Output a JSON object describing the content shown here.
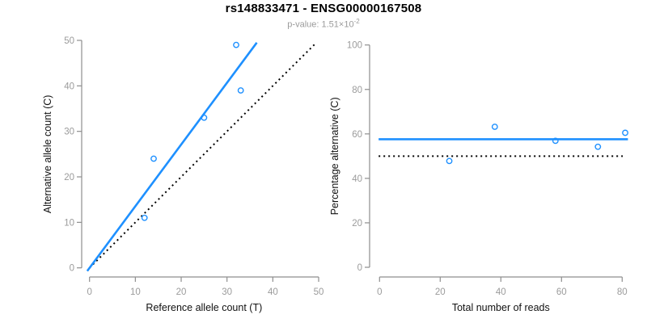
{
  "header": {
    "title": "rs148833471 - ENSG00000167508",
    "subtitle_prefix": "p-value: 1.51×10",
    "subtitle_exponent": "-2"
  },
  "colors": {
    "accent_blue": "#1E90FF",
    "reference_black": "#000000",
    "axis_gray": "#8E8E8E",
    "tick_label_gray": "#9B9B9B",
    "axis_title_black": "#111111",
    "subtitle_gray": "#9B9B9B"
  },
  "chart_data": [
    {
      "type": "scatter",
      "xlabel": "Reference allele count (T)",
      "ylabel": "Alternative allele count (C)",
      "xlim": [
        0,
        50
      ],
      "ylim": [
        0,
        50
      ],
      "xticks": [
        0,
        10,
        20,
        30,
        40,
        50
      ],
      "yticks": [
        0,
        10,
        20,
        30,
        40,
        50
      ],
      "grid": false,
      "legend": false,
      "points": [
        [
          12,
          11
        ],
        [
          14,
          24
        ],
        [
          25,
          33
        ],
        [
          33,
          39
        ],
        [
          32,
          49
        ]
      ],
      "lines": [
        {
          "name": "identity-line",
          "style": "dotted",
          "color": "#000000",
          "from": [
            0,
            0
          ],
          "to": [
            49.4,
            49.4
          ]
        },
        {
          "name": "regression-line",
          "style": "solid",
          "color": "#1E90FF",
          "from": [
            -0.5,
            -0.7
          ],
          "to": [
            36.5,
            49.5
          ]
        }
      ]
    },
    {
      "type": "scatter",
      "xlabel": "Total number of reads",
      "ylabel": "Percentage alternative (C)",
      "xlim": [
        0,
        81
      ],
      "ylim": [
        0,
        100
      ],
      "xticks": [
        0,
        20,
        40,
        60,
        80
      ],
      "yticks": [
        0,
        20,
        40,
        60,
        80,
        100
      ],
      "grid": false,
      "legend": false,
      "points": [
        [
          23,
          47.8
        ],
        [
          38,
          63.2
        ],
        [
          58,
          56.9
        ],
        [
          72,
          54.2
        ],
        [
          81,
          60.5
        ]
      ],
      "lines": [
        {
          "name": "expected-percentage-line",
          "style": "dotted",
          "color": "#000000",
          "from": [
            -0.3,
            50
          ],
          "to": [
            80.2,
            50
          ]
        },
        {
          "name": "mean-percentage-line",
          "style": "solid",
          "color": "#1E90FF",
          "from": [
            -0.3,
            57.6
          ],
          "to": [
            81.9,
            57.6
          ]
        }
      ]
    }
  ]
}
